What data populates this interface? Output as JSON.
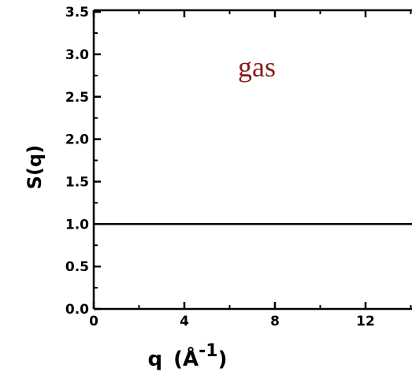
{
  "chart_data": {
    "type": "line",
    "title": "",
    "annotation": "gas",
    "annotation_color": "#8b1a1a",
    "xlabel": "q",
    "xlabel_unit_base": "Å",
    "xlabel_unit_exp": "-1",
    "ylabel": "S(q)",
    "xlim": [
      0,
      15
    ],
    "ylim": [
      0,
      3.5
    ],
    "x_ticks": [
      "0",
      "4",
      "8",
      "12"
    ],
    "x_tick_values": [
      0,
      4,
      8,
      12
    ],
    "y_ticks": [
      "0.0",
      "0.5",
      "1.0",
      "1.5",
      "2.0",
      "2.5",
      "3.0",
      "3.5"
    ],
    "y_tick_values": [
      0,
      0.5,
      1.0,
      1.5,
      2.0,
      2.5,
      3.0,
      3.5
    ],
    "grid": false,
    "series": [
      {
        "x": [
          0,
          15
        ],
        "y": [
          1.0,
          1.0
        ]
      }
    ]
  }
}
